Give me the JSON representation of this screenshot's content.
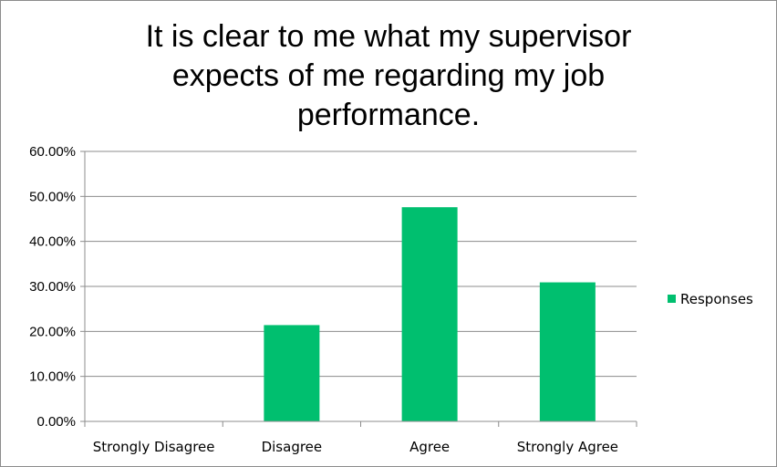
{
  "chart_data": {
    "type": "bar",
    "title_lines": [
      "It is clear to me what my supervisor",
      "expects of me regarding my job",
      "performance."
    ],
    "categories": [
      "Strongly Disagree",
      "Disagree",
      "Agree",
      "Strongly Agree"
    ],
    "series": [
      {
        "name": "Responses",
        "values": [
          0.0,
          21.4,
          47.6,
          30.9
        ],
        "color": "#00bf6f"
      }
    ],
    "ylim": [
      0,
      60
    ],
    "yticks": [
      "0.00%",
      "10.00%",
      "20.00%",
      "30.00%",
      "40.00%",
      "50.00%",
      "60.00%"
    ],
    "grid": true,
    "legend_position": "right"
  }
}
